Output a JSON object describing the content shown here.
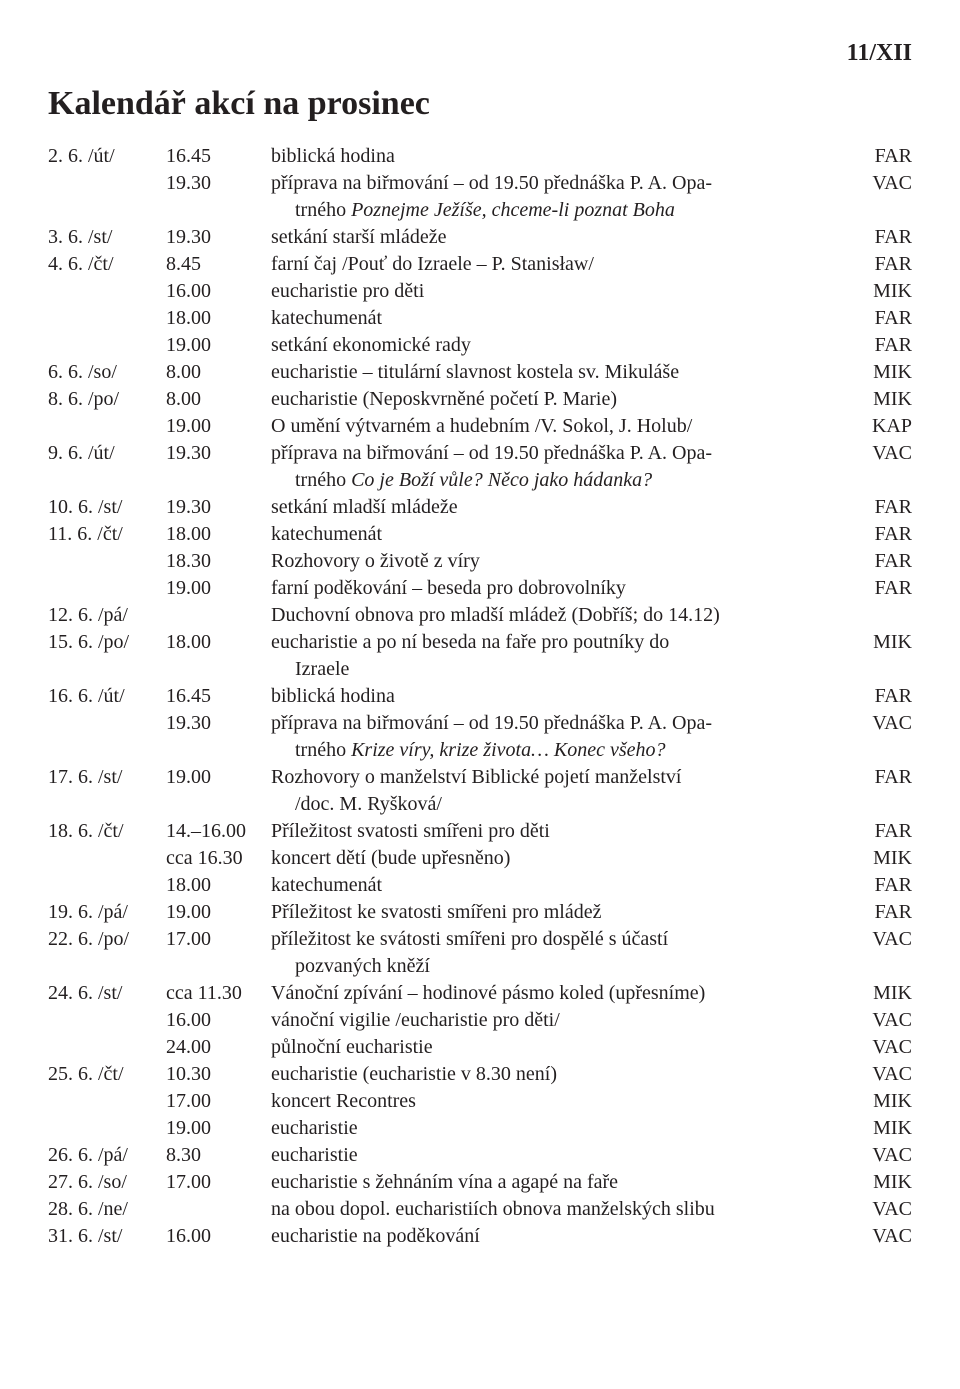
{
  "header": {
    "issue": "11/XII"
  },
  "title": "Kalendář akcí na prosinec",
  "rows": [
    {
      "date": "2. 6. /út/",
      "time": "16.45",
      "desc": "biblická hodina",
      "code": "FAR"
    },
    {
      "date": "",
      "time": "19.30",
      "desc": "příprava na biřmování – od 19.50 přednáška P. A. Opa-",
      "code": "VAC"
    },
    {
      "date": "",
      "time": "",
      "desc_cont": "trného ",
      "desc_em": "Poznejme Ježíše, chceme-li poznat Boha",
      "code": ""
    },
    {
      "date": "3. 6. /st/",
      "time": "19.30",
      "desc": "setkání starší mládeže",
      "code": "FAR"
    },
    {
      "date": "4. 6. /čt/",
      "time": "8.45",
      "desc": "farní čaj /Pouť do Izraele – P. Stanisław/",
      "code": "FAR"
    },
    {
      "date": "",
      "time": "16.00",
      "desc": "eucharistie pro děti",
      "code": "MIK"
    },
    {
      "date": "",
      "time": "18.00",
      "desc": "katechumenát",
      "code": "FAR"
    },
    {
      "date": "",
      "time": "19.00",
      "desc": "setkání ekonomické rady",
      "code": "FAR"
    },
    {
      "date": "6. 6. /so/",
      "time": "8.00",
      "desc": "eucharistie – titulární slavnost kostela sv. Mikuláše",
      "code": "MIK"
    },
    {
      "date": "8. 6. /po/",
      "time": "8.00",
      "desc": "eucharistie (Neposkvrněné početí P. Marie)",
      "code": "MIK"
    },
    {
      "date": "",
      "time": "19.00",
      "desc": "O umění výtvarném a hudebním /V. Sokol, J. Holub/",
      "code": "KAP"
    },
    {
      "date": "9. 6. /út/",
      "time": "19.30",
      "desc": "příprava na biřmování – od 19.50 přednáška P. A. Opa-",
      "code": "VAC"
    },
    {
      "date": "",
      "time": "",
      "desc_cont": "trného ",
      "desc_em": "Co je Boží vůle? Něco jako hádanka?",
      "code": ""
    },
    {
      "date": "10. 6. /st/",
      "time": "19.30",
      "desc": "setkání mladší mládeže",
      "code": "FAR"
    },
    {
      "date": "11. 6. /čt/",
      "time": "18.00",
      "desc": "katechumenát",
      "code": "FAR"
    },
    {
      "date": "",
      "time": "18.30",
      "desc": "Rozhovory o životě z víry",
      "code": "FAR"
    },
    {
      "date": "",
      "time": "19.00",
      "desc": "farní poděkování – beseda pro dobrovolníky",
      "code": "FAR"
    },
    {
      "date": "12. 6. /pá/",
      "time": "",
      "desc": "Duchovní obnova pro mladší mládež (Dobříš; do 14.12)",
      "code": ""
    },
    {
      "date": "15. 6. /po/",
      "time": "18.00",
      "desc": "eucharistie a po ní beseda na faře pro poutníky do",
      "code": "MIK"
    },
    {
      "date": "",
      "time": "",
      "desc_cont": "Izraele",
      "code": ""
    },
    {
      "date": "16. 6. /út/",
      "time": "16.45",
      "desc": "biblická hodina",
      "code": "FAR"
    },
    {
      "date": "",
      "time": "19.30",
      "desc": "příprava na biřmování – od 19.50 přednáška P. A. Opa-",
      "code": "VAC"
    },
    {
      "date": "",
      "time": "",
      "desc_cont": "trného ",
      "desc_em": "Krize víry, krize života… Konec všeho?",
      "code": ""
    },
    {
      "date": "17. 6. /st/",
      "time": "19.00",
      "desc": "Rozhovory o manželství Biblické pojetí manželství",
      "code": "FAR"
    },
    {
      "date": "",
      "time": "",
      "desc_cont": "/doc. M. Ryšková/",
      "code": ""
    },
    {
      "date": "18. 6. /čt/",
      "time": "14.–16.00",
      "desc": "Příležitost svatosti smířeni pro děti",
      "code": "FAR"
    },
    {
      "date": "",
      "time": "cca 16.30",
      "desc": "koncert dětí (bude upřesněno)",
      "code": "MIK"
    },
    {
      "date": "",
      "time": "18.00",
      "desc": "katechumenát",
      "code": "FAR"
    },
    {
      "date": "19. 6. /pá/",
      "time": "19.00",
      "desc": "Příležitost ke svatosti smířeni pro mládež",
      "code": "FAR"
    },
    {
      "date": "22. 6. /po/",
      "time": "17.00",
      "desc": "příležitost ke svátosti smířeni pro dospělé s účastí",
      "code": "VAC"
    },
    {
      "date": "",
      "time": "",
      "desc_cont": "pozvaných kněží",
      "code": ""
    },
    {
      "date": "24. 6. /st/",
      "time": "cca 11.30",
      "desc": "Vánoční zpívání – hodinové pásmo koled (upřesníme)",
      "code": "MIK"
    },
    {
      "date": "",
      "time": "16.00",
      "desc": "vánoční vigilie /eucharistie pro děti/",
      "code": "VAC"
    },
    {
      "date": "",
      "time": "24.00",
      "desc": "půlnoční eucharistie",
      "code": "VAC"
    },
    {
      "date": "25. 6. /čt/",
      "time": "10.30",
      "desc": "eucharistie (eucharistie v 8.30 není)",
      "code": "VAC"
    },
    {
      "date": "",
      "time": "17.00",
      "desc": "koncert Recontres",
      "code": "MIK"
    },
    {
      "date": "",
      "time": "19.00",
      "desc": "eucharistie",
      "code": "MIK"
    },
    {
      "date": "26. 6. /pá/",
      "time": "8.30",
      "desc": "eucharistie",
      "code": "VAC"
    },
    {
      "date": "27. 6. /so/",
      "time": "17.00",
      "desc": "eucharistie s žehnáním vína a agapé na faře",
      "code": "MIK"
    },
    {
      "date": "28. 6. /ne/",
      "time": "",
      "desc": "na obou dopol. eucharistiích obnova manželských slibu",
      "code": "VAC"
    },
    {
      "date": "31. 6. /st/",
      "time": "16.00",
      "desc": "eucharistie na poděkování",
      "code": "VAC"
    }
  ]
}
